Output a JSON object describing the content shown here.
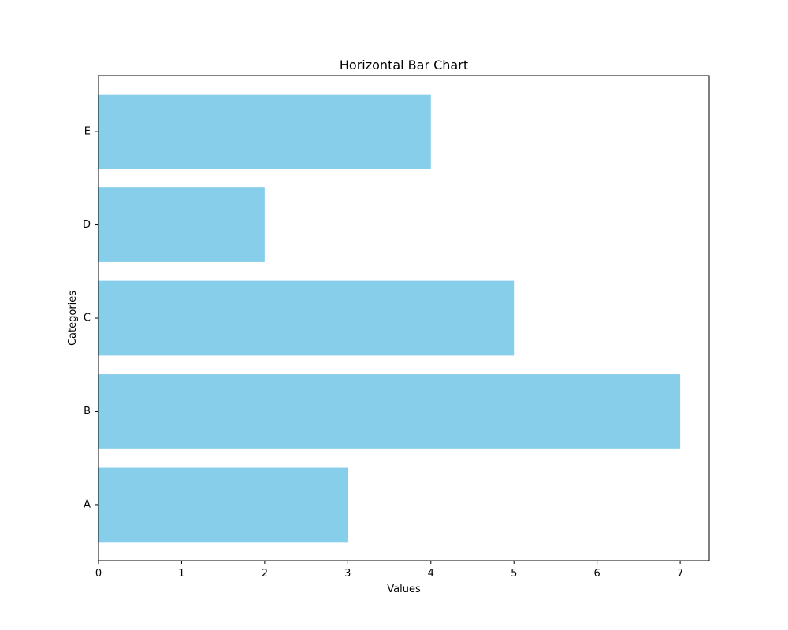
{
  "chart_data": {
    "type": "bar",
    "orientation": "horizontal",
    "title": "Horizontal Bar Chart",
    "xlabel": "Values",
    "ylabel": "Categories",
    "categories": [
      "A",
      "B",
      "C",
      "D",
      "E"
    ],
    "values": [
      3,
      7,
      5,
      2,
      4
    ],
    "xlim": [
      0,
      7.35
    ],
    "x_ticks": [
      0,
      1,
      2,
      3,
      4,
      5,
      6,
      7
    ],
    "bar_color": "#87ceeb",
    "grid": false,
    "legend": "none"
  }
}
